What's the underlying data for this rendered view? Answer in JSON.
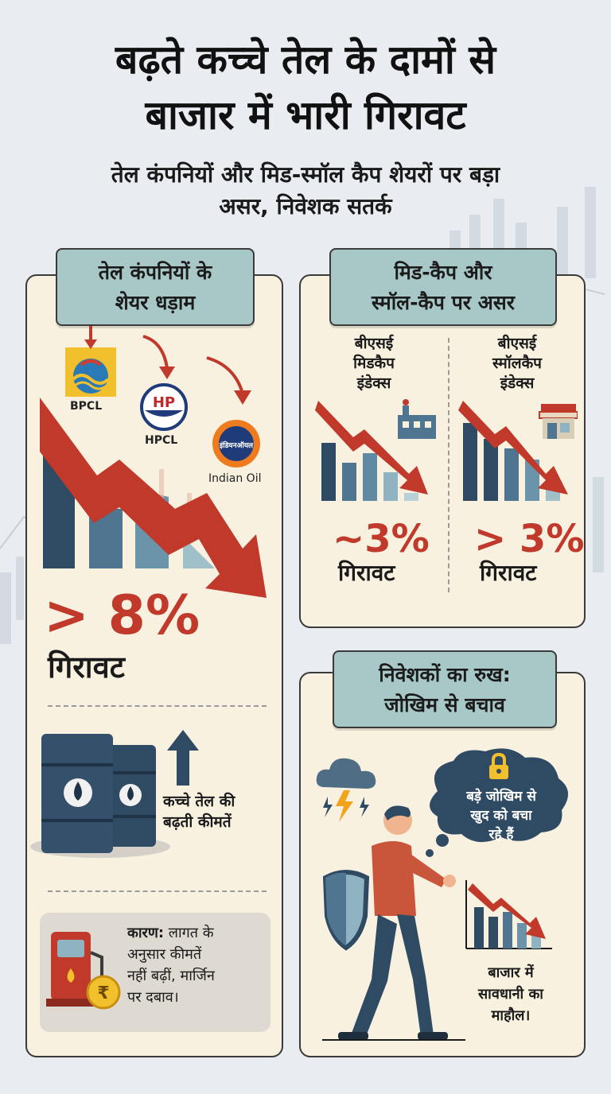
{
  "title": {
    "line1": "बढ़ते कच्चे तेल के दामों से",
    "line2": "बाजार में भारी गिरावट"
  },
  "subtitle": {
    "line1": "तेल कंपनियों और मिड-स्मॉल कैप शेयरों पर बड़ा",
    "line2": "असर, निवेशक सतर्क"
  },
  "oil_panel": {
    "tag_line1": "तेल कंपनियों के",
    "tag_line2": "शेयर धड़ाम",
    "companies": [
      "BPCL",
      "HPCL",
      "Indian Oil"
    ],
    "hp_mark": "HP",
    "ioc_mark": "इंडियनऑयल",
    "drop_value": "> 8%",
    "drop_word": "गिरावट",
    "crude_line1": "कच्चे तेल की",
    "crude_line2": "बढ़ती कीमतें",
    "reason_label": "कारण:",
    "reason_line1": " लागत के",
    "reason_line2": "अनुसार कीमतें",
    "reason_line3": "नहीं बढ़ीं, मार्जिन",
    "reason_line4": "पर दबाव।",
    "rupee": "₹"
  },
  "cap_panel": {
    "tag_line1": "मिड-कैप और",
    "tag_line2": "स्मॉल-कैप पर असर",
    "midcap": {
      "line1": "बीएसई",
      "line2": "मिडकैप",
      "line3": "इंडेक्स",
      "value": "~3%",
      "word": "गिरावट"
    },
    "smallcap": {
      "line1": "बीएसई",
      "line2": "स्मॉलकैप",
      "line3": "इंडेक्स",
      "value": "> 3%",
      "word": "गिरावट"
    }
  },
  "investor_panel": {
    "tag_line1": "निवेशकों का रुख:",
    "tag_line2": "जोखिम से बचाव",
    "thought_line1": "बड़े जोखिम से",
    "thought_line2": "खुद को बचा",
    "thought_line3": "रहे हैं",
    "market_line1": "बाजार में",
    "market_line2": "सावधानी का",
    "market_line3": "माहौल।"
  },
  "colors": {
    "background": "#e9edf1",
    "panel": "#f8f1e0",
    "tag": "#a8c8c8",
    "accent_red": "#c0392b",
    "bar_dark": "#2f4a63",
    "bar_mid": "#4f7590",
    "bar_light": "#8fb3c0"
  }
}
